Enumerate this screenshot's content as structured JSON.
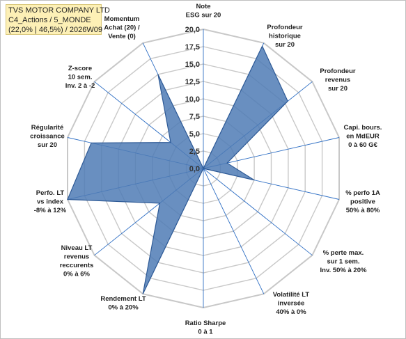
{
  "header": {
    "company": "TVS MOTOR COMPANY LTD",
    "category": "C4_Actions / 5_MONDE",
    "period": "(22,0% | 46,5%) / 2026W09"
  },
  "colors": {
    "fill": "#4f7bb5",
    "stroke": "#2e5a96",
    "grid": "#c8c8c8",
    "axis": "#2f6fc4"
  },
  "chart_data": {
    "type": "radar",
    "rmin": 0,
    "rmax": 20,
    "ticks": [
      "0,0",
      "2,5",
      "5,0",
      "7,5",
      "10,0",
      "12,5",
      "15,0",
      "17,5",
      "20,0"
    ],
    "axes": [
      {
        "label": [
          "Note",
          "ESG sur 20"
        ],
        "value": 0
      },
      {
        "label": [
          "Profondeur",
          "historique",
          "sur 20"
        ],
        "value": 19.5
      },
      {
        "label": [
          "Profondeur",
          "revenus",
          "sur 20"
        ],
        "value": 15.5
      },
      {
        "label": [
          "Capi. bours.",
          "en MdEUR",
          "0 à 60 G€"
        ],
        "value": 3.5
      },
      {
        "label": [
          "% perfo 1A",
          "positive",
          "50% à 80%"
        ],
        "value": 7.5
      },
      {
        "label": [
          "% perte max.",
          "sur 1 sem.",
          "Inv. 50% à 20%"
        ],
        "value": 0
      },
      {
        "label": [
          "Volatilité LT",
          "inversée",
          "40% à 0%"
        ],
        "value": 0
      },
      {
        "label": [
          "Ratio Sharpe",
          "0 à 1"
        ],
        "value": 0
      },
      {
        "label": [
          "Rendement LT",
          "0% à 20%"
        ],
        "value": 20
      },
      {
        "label": [
          "Niveau LT",
          "revenus",
          "reccurents",
          "0% à 6%"
        ],
        "value": 8
      },
      {
        "label": [
          "Perfo. LT",
          "vs index",
          "-8% à 12%"
        ],
        "value": 20
      },
      {
        "label": [
          "Régularité",
          "croissance",
          "sur 20"
        ],
        "value": 16.5
      },
      {
        "label": [
          "Z-score",
          "10 sem.",
          "Inv. 2 à -2"
        ],
        "value": 6
      },
      {
        "label": [
          "Momentum",
          "Achat (20) /",
          "Vente (0)"
        ],
        "value": 15
      }
    ]
  }
}
